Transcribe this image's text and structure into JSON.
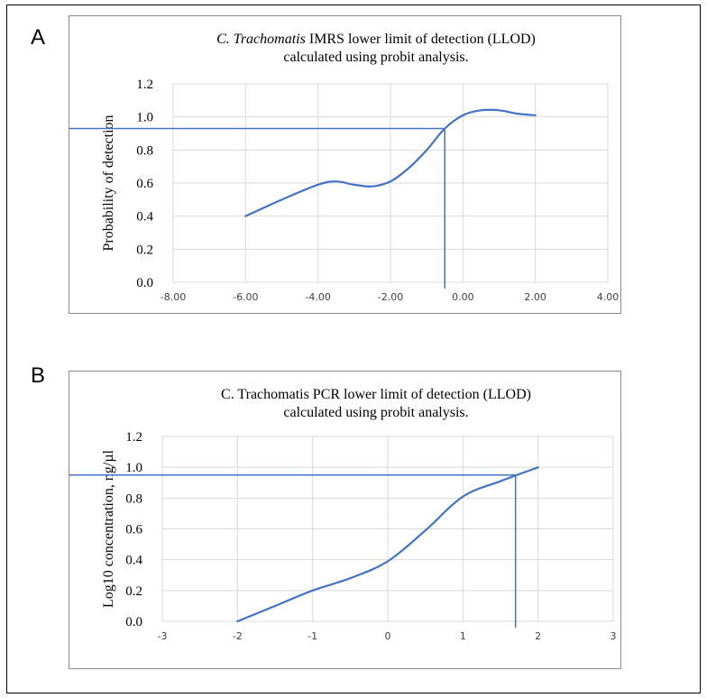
{
  "panels": [
    {
      "letter": "A"
    },
    {
      "letter": "B"
    }
  ],
  "chart_data": [
    {
      "type": "line",
      "title_italic": "C. Trachomatis",
      "title_rest": " IMRS lower limit of detection (LLOD)",
      "title_line2": "calculated using probit analysis.",
      "xlabel": "",
      "ylabel": "Probability of detection",
      "xlim": [
        -8,
        4
      ],
      "ylim": [
        0,
        1.2
      ],
      "x_ticks": [
        "-8.00",
        "-6.00",
        "-4.00",
        "-2.00",
        "0.00",
        "2.00",
        "4.00"
      ],
      "y_ticks": [
        "0.0",
        "0.2",
        "0.4",
        "0.6",
        "0.8",
        "1.0",
        "1.2"
      ],
      "grid": true,
      "line_color": "#4472c4",
      "series": [
        {
          "x": [
            -6.0,
            -5.0,
            -4.0,
            -3.5,
            -3.0,
            -2.5,
            -2.0,
            -1.5,
            -1.0,
            -0.5,
            0.0,
            0.5,
            1.0,
            1.5,
            2.0
          ],
          "y": [
            0.4,
            0.5,
            0.59,
            0.61,
            0.59,
            0.58,
            0.61,
            0.69,
            0.8,
            0.93,
            1.01,
            1.04,
            1.04,
            1.02,
            1.01
          ]
        }
      ],
      "reference_lines": {
        "x": -0.5,
        "y": 0.93
      }
    },
    {
      "type": "line",
      "title_italic": "",
      "title_rest": "C. Trachomatis PCR lower limit of detection (LLOD)",
      "title_line2": "calculated using probit analysis.",
      "xlabel": "",
      "ylabel": "Log10 concentration, ng/µl",
      "xlim": [
        -3,
        3
      ],
      "ylim": [
        0,
        1.2
      ],
      "x_ticks": [
        "-3",
        "-2",
        "-1",
        "0",
        "1",
        "2",
        "3"
      ],
      "y_ticks": [
        "0.0",
        "0.2",
        "0.4",
        "0.6",
        "0.8",
        "1.0",
        "1.2"
      ],
      "grid": true,
      "line_color": "#4472c4",
      "series": [
        {
          "x": [
            -2.0,
            -1.5,
            -1.0,
            -0.5,
            0.0,
            0.5,
            1.0,
            1.5,
            2.0
          ],
          "y": [
            0.0,
            0.1,
            0.2,
            0.28,
            0.39,
            0.59,
            0.81,
            0.91,
            1.0
          ]
        }
      ],
      "reference_lines": {
        "x": 1.7,
        "y": 0.95
      }
    }
  ]
}
